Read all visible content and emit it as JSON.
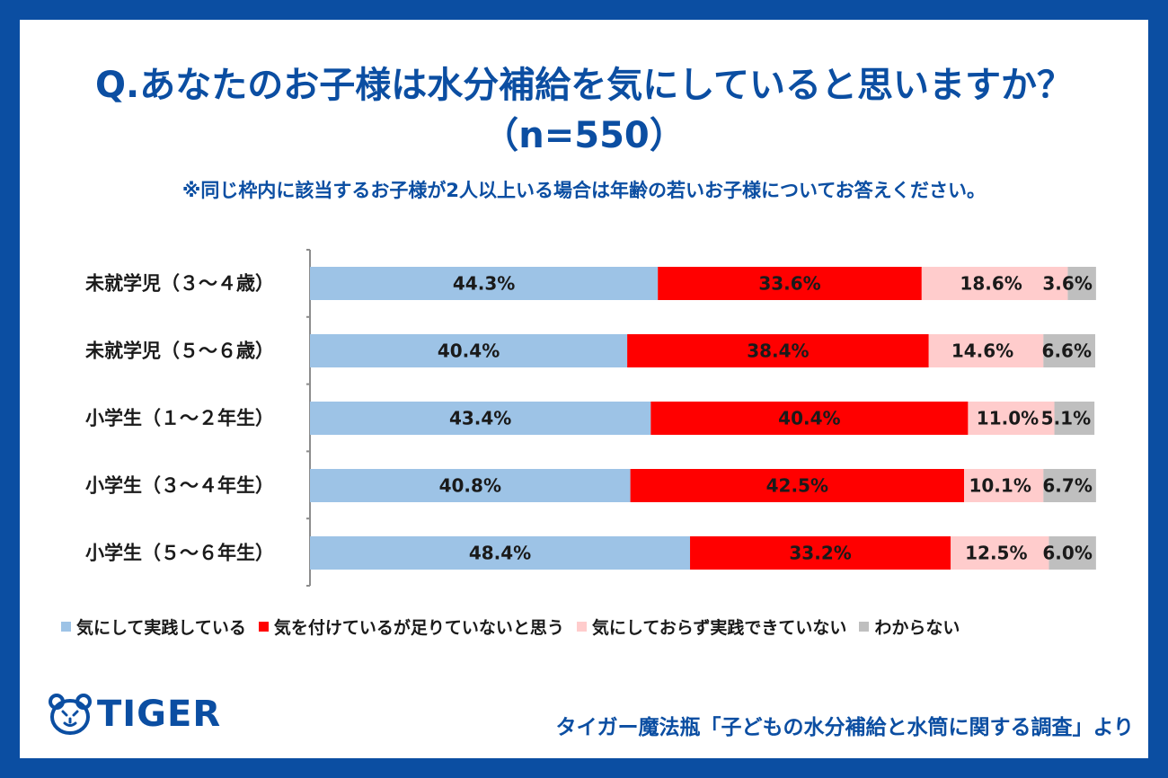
{
  "header": {
    "title_line1": "Q.あなたのお子様は水分補給を気にしていると思いますか？",
    "title_line2": "（n=550）",
    "note": "※同じ枠内に該当するお子様が2人以上いる場合は年齢の若いお子様についてお答えください。"
  },
  "chart_data": {
    "type": "bar",
    "orientation": "horizontal",
    "stacked": true,
    "unit": "%",
    "categories": [
      "未就学児（３～４歳）",
      "未就学児（５～６歳）",
      "小学生（１～２年生）",
      "小学生（３～４年生）",
      "小学生（５～６年生）"
    ],
    "series": [
      {
        "name": "気にして実践している",
        "color": "#9dc3e6",
        "values": [
          44.3,
          40.4,
          43.4,
          40.8,
          48.4
        ]
      },
      {
        "name": "気を付けているが足りていないと思う",
        "color": "#ff0000",
        "values": [
          33.6,
          38.4,
          40.4,
          42.5,
          33.2
        ]
      },
      {
        "name": "気にしておらず実践できていない",
        "color": "#ffcccc",
        "values": [
          18.6,
          14.6,
          11.0,
          10.1,
          12.5
        ]
      },
      {
        "name": "わからない",
        "color": "#bfbfbf",
        "values": [
          3.6,
          6.6,
          5.1,
          6.7,
          6.0
        ]
      }
    ],
    "legend_position": "bottom",
    "grid": false
  },
  "branding": {
    "logo_text": "TIGER",
    "logo_icon": "tiger-face-icon",
    "brand_color": "#0b4ea2",
    "source": "タイガー魔法瓶「子どもの水分補給と水筒に関する調査」より"
  }
}
